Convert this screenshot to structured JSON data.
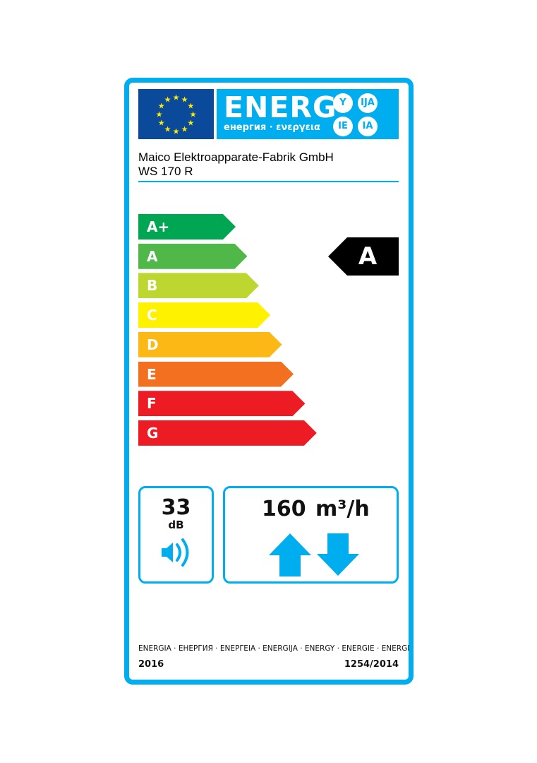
{
  "header": {
    "energy_word": "ENERG",
    "energy_subtitle": "енергия · ενεργεια",
    "suffixes": [
      "Y",
      "IJA",
      "IE",
      "IA"
    ]
  },
  "supplier": "Maico Elektroapparate-Fabrik GmbH",
  "model": "WS 170 R",
  "classes": [
    {
      "label": "A+",
      "color": "#00a651"
    },
    {
      "label": "A",
      "color": "#50b848"
    },
    {
      "label": "B",
      "color": "#bed630"
    },
    {
      "label": "C",
      "color": "#fff200"
    },
    {
      "label": "D",
      "color": "#fcb814"
    },
    {
      "label": "E",
      "color": "#f37021"
    },
    {
      "label": "F",
      "color": "#ed1c24"
    },
    {
      "label": "G",
      "color": "#ed1c24"
    }
  ],
  "rating": "A",
  "noise": {
    "value": "33",
    "unit": "dB",
    "icon": "speaker-icon"
  },
  "airflow": {
    "value": "160",
    "unit": "m³/h",
    "icons": [
      "arrow-up-icon",
      "arrow-down-icon"
    ]
  },
  "footer": {
    "languages": "ENERGIA · ЕНЕРГИЯ · ΕΝΕΡΓΕΙΑ · ENERGIJA · ENERGY · ENERGIE · ENERGI",
    "year": "2016",
    "regulation": "1254/2014"
  },
  "accent": "#00aeef"
}
